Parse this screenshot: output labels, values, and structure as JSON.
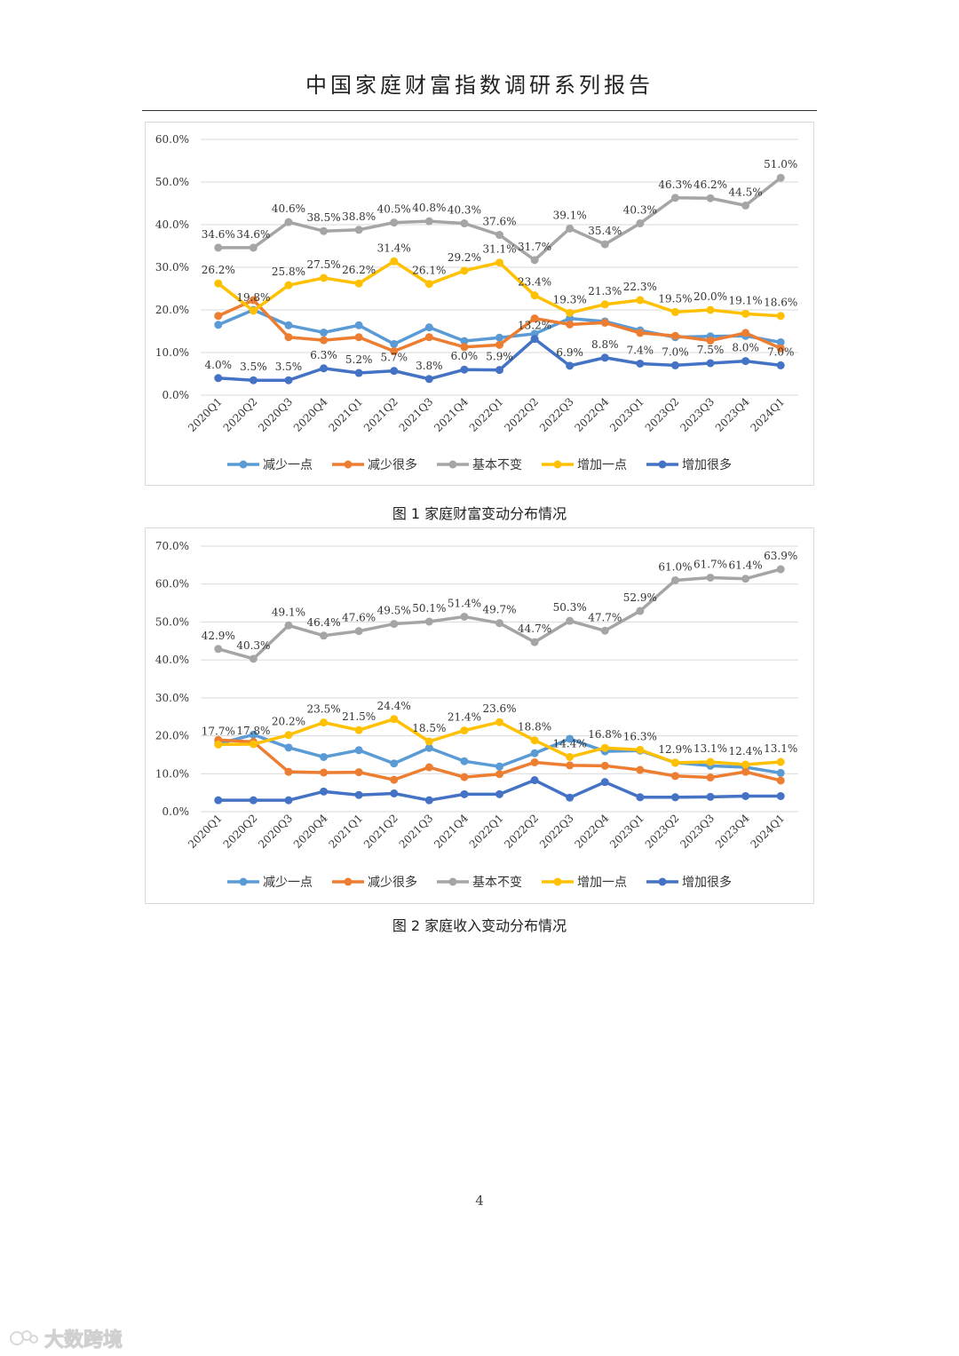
{
  "page": {
    "header": "中国家庭财富指数调研系列报告",
    "page_number": "4",
    "watermark": "大数跨境"
  },
  "colors": {
    "减少一点": "#5b9bd5",
    "减少很多": "#ed7d31",
    "基本不变": "#a5a5a5",
    "增加一点": "#ffc000",
    "增加很多": "#4472c4",
    "grid": "#d9d9d9"
  },
  "chart_data": [
    {
      "type": "line",
      "caption": "图 1 家庭财富变动分布情况",
      "ylim": [
        0,
        60
      ],
      "yticks": [
        "0.0%",
        "10.0%",
        "20.0%",
        "30.0%",
        "40.0%",
        "50.0%",
        "60.0%"
      ],
      "categories": [
        "2020Q1",
        "2020Q2",
        "2020Q3",
        "2020Q4",
        "2021Q1",
        "2021Q2",
        "2021Q3",
        "2021Q4",
        "2022Q1",
        "2022Q2",
        "2022Q3",
        "2022Q4",
        "2023Q1",
        "2023Q2",
        "2023Q3",
        "2023Q4",
        "2024Q1"
      ],
      "legend_position": "bottom",
      "series": [
        {
          "name": "减少一点",
          "values": [
            16.5,
            20.0,
            16.4,
            14.7,
            16.4,
            12.0,
            15.9,
            12.7,
            13.5,
            14.4,
            18.0,
            17.3,
            15.2,
            13.6,
            13.8,
            13.9,
            12.4
          ],
          "labels": []
        },
        {
          "name": "减少很多",
          "values": [
            18.6,
            22.3,
            13.6,
            12.9,
            13.6,
            10.3,
            13.6,
            11.3,
            11.8,
            18.0,
            16.6,
            17.0,
            14.6,
            13.9,
            12.8,
            14.6,
            11.0
          ],
          "labels": []
        },
        {
          "name": "基本不变",
          "values": [
            34.6,
            34.6,
            40.6,
            38.5,
            38.8,
            40.5,
            40.8,
            40.3,
            37.6,
            31.7,
            39.1,
            35.4,
            40.3,
            46.3,
            46.2,
            44.5,
            51.0
          ],
          "labels": [
            "34.6%",
            "34.6%",
            "40.6%",
            "38.5%",
            "38.8%",
            "40.5%",
            "40.8%",
            "40.3%",
            "37.6%",
            "31.7%",
            "39.1%",
            "35.4%",
            "40.3%",
            "46.3%",
            "46.2%",
            "44.5%",
            "51.0%"
          ]
        },
        {
          "name": "增加一点",
          "values": [
            26.2,
            19.8,
            25.8,
            27.5,
            26.2,
            31.4,
            26.1,
            29.2,
            31.1,
            23.4,
            19.3,
            21.3,
            22.3,
            19.5,
            20.0,
            19.1,
            18.6
          ],
          "labels": [
            "26.2%",
            "19.8%",
            "25.8%",
            "27.5%",
            "26.2%",
            "31.4%",
            "26.1%",
            "29.2%",
            "31.1%",
            "23.4%",
            "19.3%",
            "21.3%",
            "22.3%",
            "19.5%",
            "20.0%",
            "19.1%",
            "18.6%"
          ]
        },
        {
          "name": "增加很多",
          "values": [
            4.0,
            3.5,
            3.5,
            6.3,
            5.2,
            5.7,
            3.8,
            6.0,
            5.9,
            13.2,
            6.9,
            8.8,
            7.4,
            7.0,
            7.5,
            8.0,
            7.0
          ],
          "labels": [
            "4.0%",
            "3.5%",
            "3.5%",
            "6.3%",
            "5.2%",
            "5.7%",
            "3.8%",
            "6.0%",
            "5.9%",
            "13.2%",
            "6.9%",
            "8.8%",
            "7.4%",
            "7.0%",
            "7.5%",
            "8.0%",
            "7.0%"
          ]
        }
      ]
    },
    {
      "type": "line",
      "caption": "图 2 家庭收入变动分布情况",
      "ylim": [
        0,
        70
      ],
      "yticks": [
        "0.0%",
        "10.0%",
        "20.0%",
        "30.0%",
        "40.0%",
        "50.0%",
        "60.0%",
        "70.0%"
      ],
      "categories": [
        "2020Q1",
        "2020Q2",
        "2020Q3",
        "2020Q4",
        "2021Q1",
        "2021Q2",
        "2021Q3",
        "2021Q4",
        "2022Q1",
        "2022Q2",
        "2022Q3",
        "2022Q4",
        "2023Q1",
        "2023Q2",
        "2023Q3",
        "2023Q4",
        "2024Q1"
      ],
      "legend_position": "bottom",
      "series": [
        {
          "name": "减少一点",
          "values": [
            17.9,
            20.3,
            16.9,
            14.4,
            16.2,
            12.7,
            16.8,
            13.3,
            11.9,
            15.4,
            19.2,
            15.9,
            16.1,
            12.9,
            12.1,
            11.7,
            10.2
          ],
          "labels": []
        },
        {
          "name": "减少很多",
          "values": [
            18.9,
            18.4,
            10.5,
            10.3,
            10.4,
            8.4,
            11.7,
            9.1,
            9.9,
            13.0,
            12.2,
            12.1,
            11.0,
            9.4,
            9.0,
            10.5,
            8.2
          ],
          "labels": []
        },
        {
          "name": "基本不变",
          "values": [
            42.9,
            40.3,
            49.1,
            46.4,
            47.6,
            49.5,
            50.1,
            51.4,
            49.7,
            44.7,
            50.3,
            47.7,
            52.9,
            61.0,
            61.7,
            61.4,
            63.9
          ],
          "labels": [
            "42.9%",
            "40.3%",
            "49.1%",
            "46.4%",
            "47.6%",
            "49.5%",
            "50.1%",
            "51.4%",
            "49.7%",
            "44.7%",
            "50.3%",
            "47.7%",
            "52.9%",
            "61.0%",
            "61.7%",
            "61.4%",
            "63.9%"
          ]
        },
        {
          "name": "增加一点",
          "values": [
            17.7,
            17.8,
            20.2,
            23.5,
            21.5,
            24.4,
            18.5,
            21.4,
            23.6,
            18.8,
            14.4,
            16.8,
            16.3,
            12.9,
            13.1,
            12.4,
            13.1
          ],
          "labels": [
            "17.7%",
            "17.8%",
            "20.2%",
            "23.5%",
            "21.5%",
            "24.4%",
            "18.5%",
            "21.4%",
            "23.6%",
            "18.8%",
            "14.4%",
            "16.8%",
            "16.3%",
            "12.9%",
            "13.1%",
            "12.4%",
            "13.1%"
          ]
        },
        {
          "name": "增加很多",
          "values": [
            3.0,
            3.0,
            3.0,
            5.3,
            4.4,
            4.8,
            3.0,
            4.6,
            4.6,
            8.3,
            3.7,
            7.8,
            3.8,
            3.8,
            3.9,
            4.1,
            4.1
          ],
          "labels": []
        }
      ]
    }
  ]
}
